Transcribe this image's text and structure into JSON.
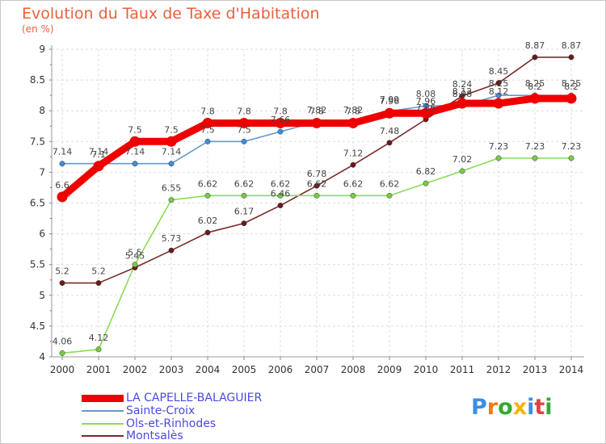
{
  "chart_data": {
    "type": "line",
    "title": "Evolution du Taux de Taxe d'Habitation",
    "ylabel": "(en %)",
    "xlabel": "",
    "categories": [
      "2000",
      "2001",
      "2002",
      "2003",
      "2004",
      "2005",
      "2006",
      "2007",
      "2008",
      "2009",
      "2010",
      "2011",
      "2012",
      "2013",
      "2014"
    ],
    "ylim": [
      4,
      9
    ],
    "yticks": [
      "4",
      "4.5",
      "5",
      "5.5",
      "6",
      "6.5",
      "7",
      "7.5",
      "8",
      "8.5",
      "9"
    ],
    "grid": true,
    "legend_position": "bottom-left",
    "series": [
      {
        "name": "LA CAPELLE-BALAGUIER",
        "color": "#ee0000",
        "marker": "#ee0000",
        "values": [
          6.6,
          7.1,
          7.5,
          7.5,
          7.8,
          7.8,
          7.8,
          7.8,
          7.8,
          7.96,
          7.96,
          8.12,
          8.12,
          8.2,
          8.2
        ],
        "labels": [
          "6.6",
          "7.1",
          "7.5",
          "7.5",
          "7.8",
          "7.8",
          "7.8",
          "7.8",
          "7.8",
          "7.96",
          "7.96",
          "8.12",
          "8.12",
          "8.2",
          "8.2"
        ]
      },
      {
        "name": "Sainte-Croix",
        "color": "#6699cc",
        "marker": "#3b8ee0",
        "values": [
          7.14,
          7.14,
          7.14,
          7.14,
          7.5,
          7.5,
          7.66,
          7.82,
          7.82,
          7.99,
          8.08,
          8.08,
          8.25,
          8.25,
          8.25
        ],
        "labels": [
          "7.14",
          "7.14",
          "7.14",
          "7.14",
          "7.5",
          "7.5",
          "7.66",
          "7.82",
          "7.82",
          "7.99",
          "8.08",
          "8.08",
          "8.25",
          "8.25",
          "8.25"
        ]
      },
      {
        "name": "Ols-et-Rinhodes",
        "color": "#88dd55",
        "marker": "#77cc44",
        "values": [
          4.06,
          4.12,
          5.5,
          6.55,
          6.62,
          6.62,
          6.62,
          6.62,
          6.62,
          6.62,
          6.82,
          7.02,
          7.23,
          7.23,
          7.23
        ],
        "labels": [
          "4.06",
          "4.12",
          "5.5",
          "6.55",
          "6.62",
          "6.62",
          "6.62",
          "6.62",
          "6.62",
          "6.62",
          "6.82",
          "7.02",
          "7.23",
          "7.23",
          "7.23"
        ]
      },
      {
        "name": "Montsalès",
        "color": "#7a2a2a",
        "marker": "#6a1a1a",
        "values": [
          5.2,
          5.2,
          5.45,
          5.73,
          6.02,
          6.17,
          6.46,
          6.78,
          7.12,
          7.48,
          7.86,
          8.24,
          8.45,
          8.87,
          8.87
        ],
        "labels": [
          "5.2",
          "5.2",
          "5.45",
          "5.73",
          "6.02",
          "6.17",
          "6.46",
          "6.78",
          "7.12",
          "7.48",
          "7.86",
          "8.24",
          "8.45",
          "8.87",
          "8.87"
        ]
      }
    ]
  },
  "branding": {
    "logo_letters": [
      "P",
      "r",
      "o",
      "x",
      "i",
      "t",
      "i"
    ],
    "logo_colors": [
      "#3a8ee6",
      "#f07a1a",
      "#33aa33",
      "#f0b400",
      "#3a8ee6",
      "#e04040",
      "#33aa33"
    ]
  }
}
